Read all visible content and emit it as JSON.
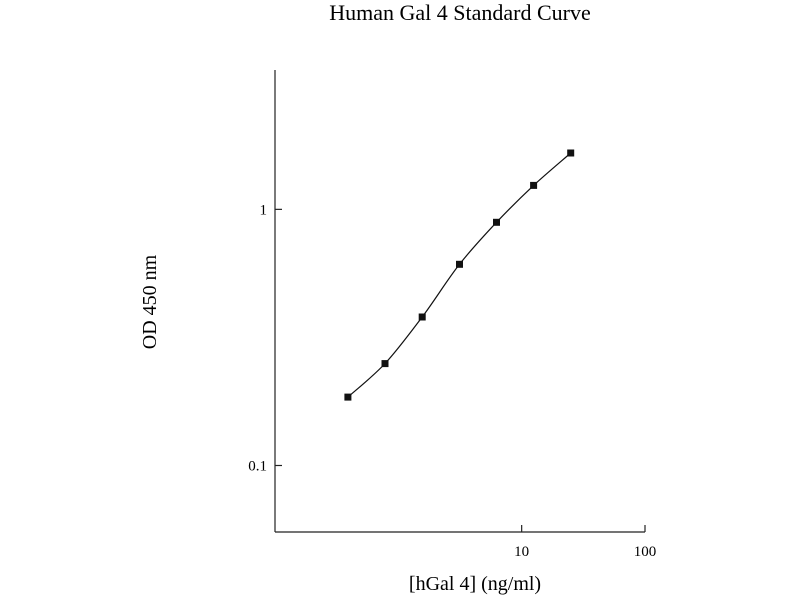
{
  "chart_data": {
    "type": "line",
    "title": "Human Gal 4 Standard Curve",
    "xlabel": "[hGal 4] (ng/ml)",
    "ylabel": "OD 450 nm",
    "x_scale": "log",
    "y_scale": "log",
    "xlim": [
      0.1,
      100
    ],
    "ylim": [
      0.055,
      3.5
    ],
    "x_ticks": [
      {
        "value": 10,
        "label": "10"
      },
      {
        "value": 100,
        "label": "100"
      }
    ],
    "y_ticks": [
      {
        "value": 0.1,
        "label": "0.1"
      },
      {
        "value": 1,
        "label": "1"
      }
    ],
    "grid": false,
    "series": [
      {
        "marker": "square",
        "color": "#111111",
        "x": [
          0.39,
          0.78,
          1.56,
          3.13,
          6.25,
          12.5,
          25
        ],
        "y": [
          0.185,
          0.25,
          0.38,
          0.61,
          0.89,
          1.24,
          1.66
        ]
      }
    ]
  }
}
